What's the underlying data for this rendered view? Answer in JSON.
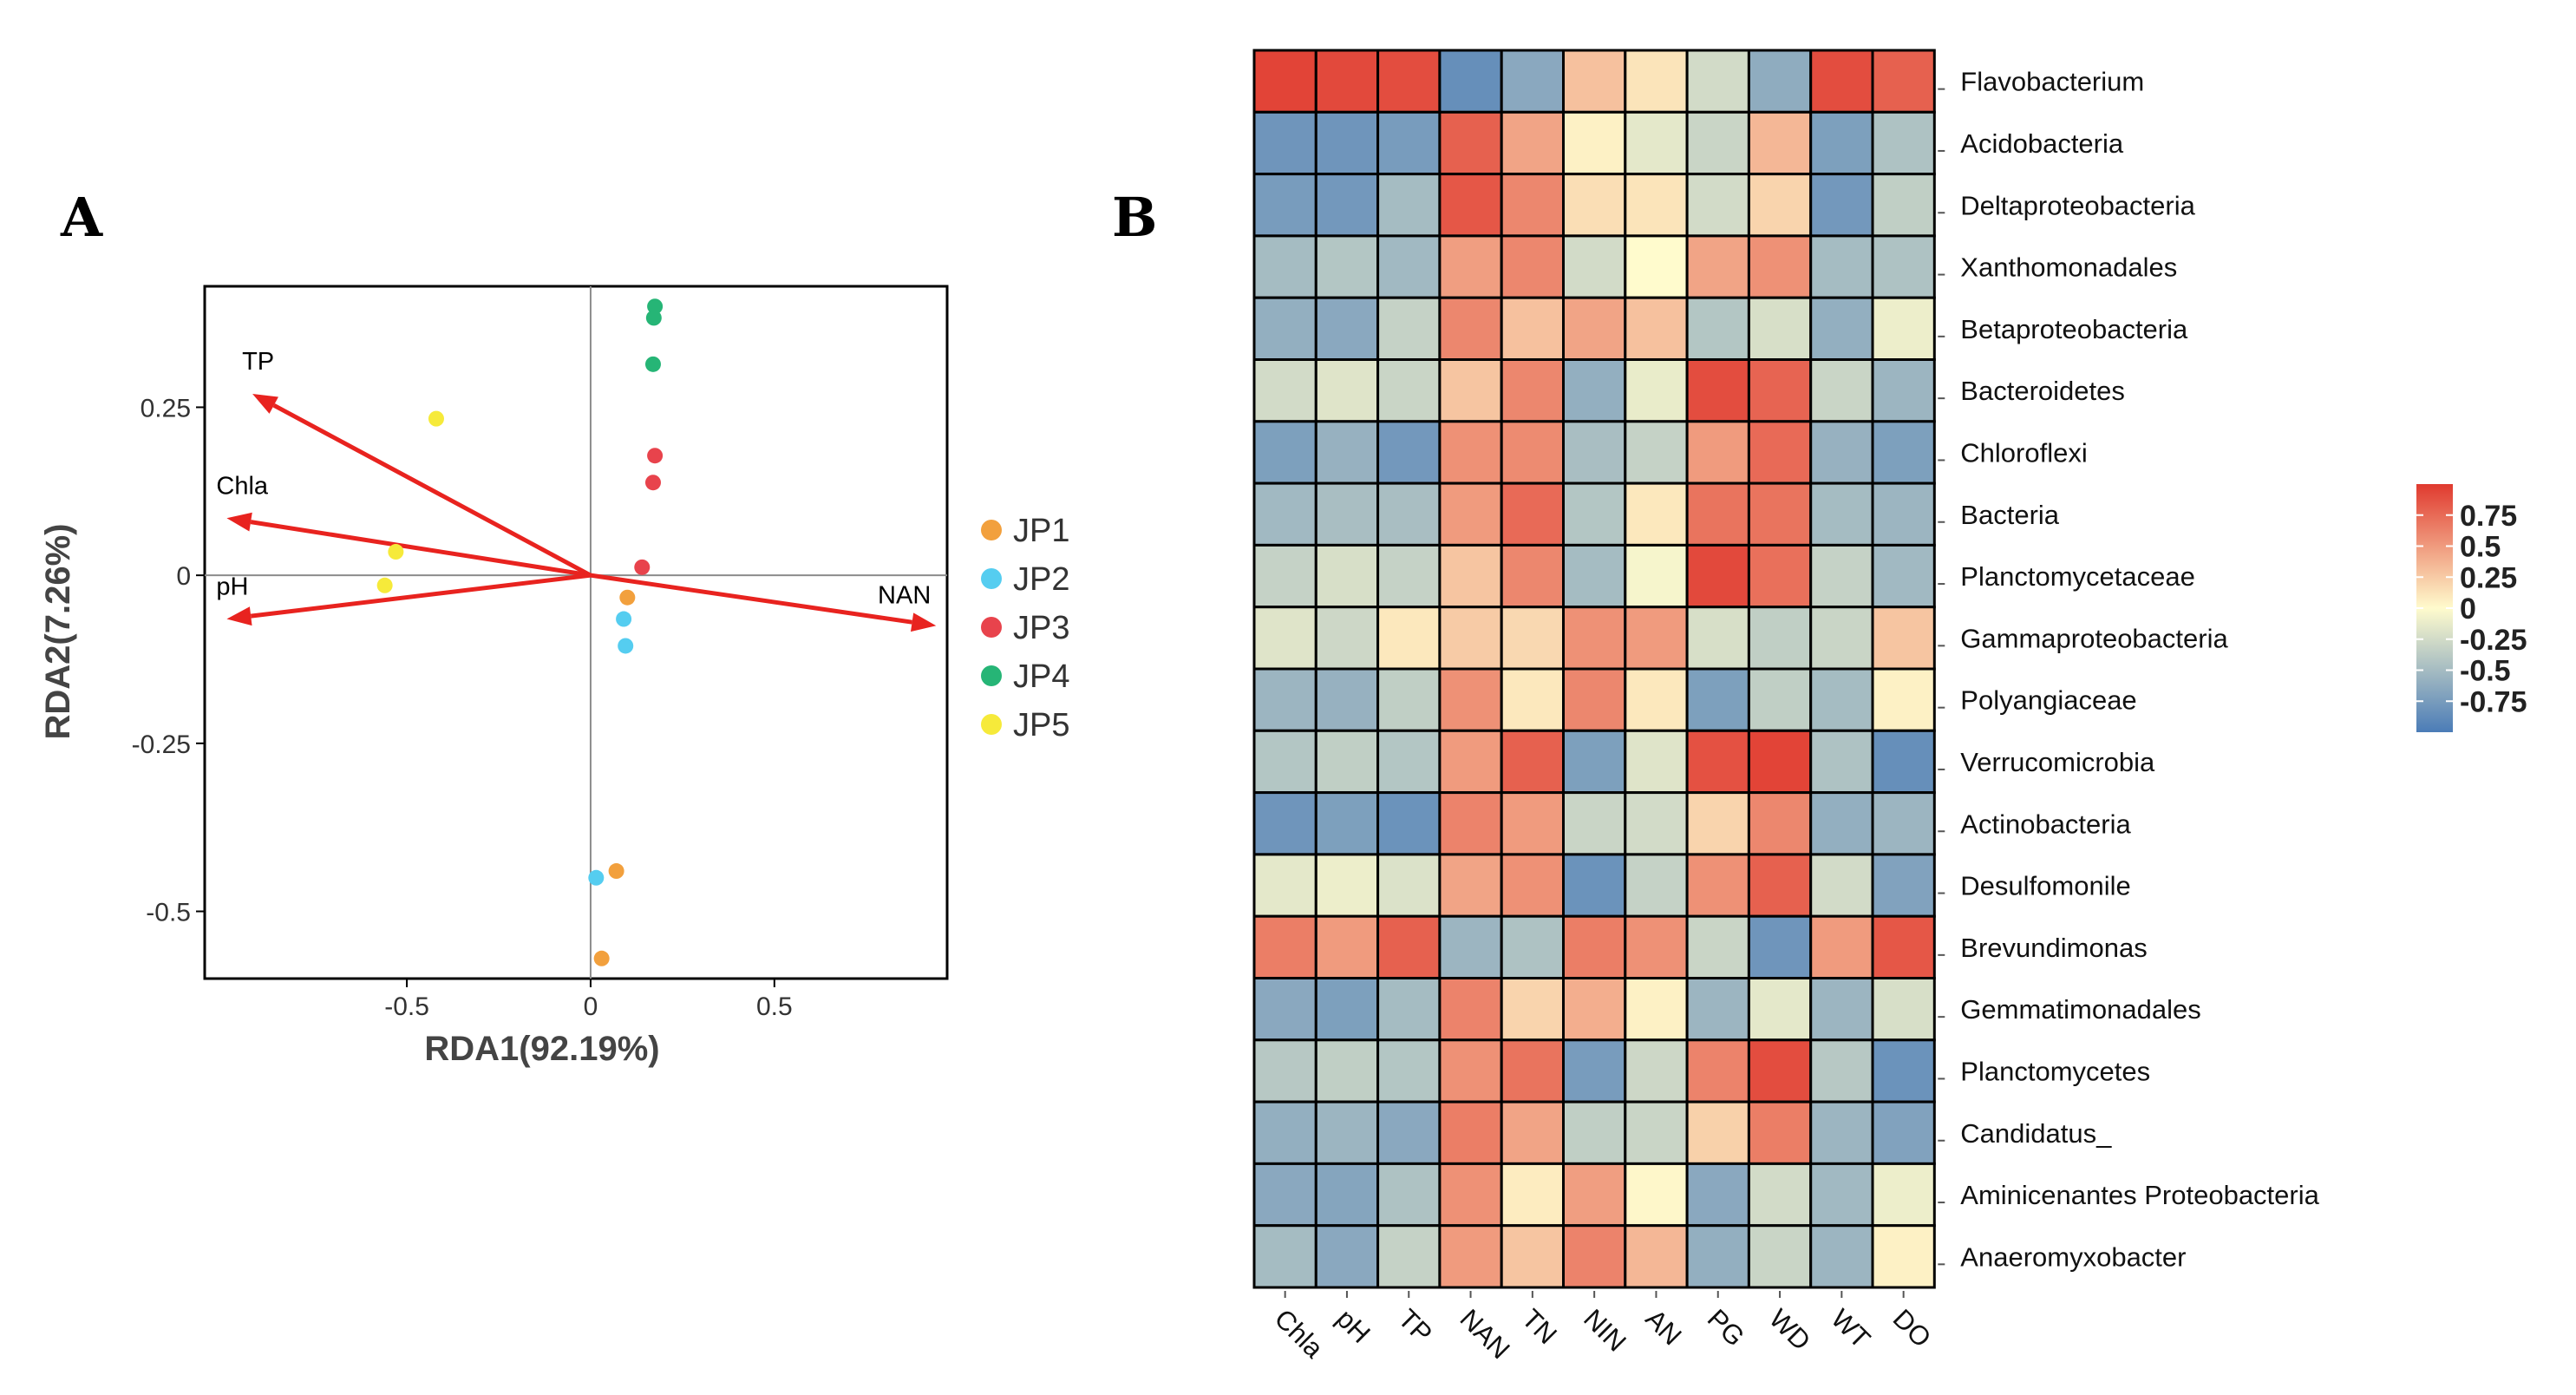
{
  "panels": {
    "a": "A",
    "b": "B"
  },
  "chart_data": [
    {
      "type": "scatter",
      "subtype": "rda_biplot",
      "xlabel": "RDA1(92.19%)",
      "ylabel": "RDA2(7.26%)",
      "xlim": [
        -1.05,
        0.97
      ],
      "ylim": [
        -0.6,
        0.43
      ],
      "xticks": [
        {
          "v": -0.5,
          "label": "-0.5"
        },
        {
          "v": 0,
          "label": "0"
        },
        {
          "v": 0.5,
          "label": "0.5"
        }
      ],
      "yticks": [
        {
          "v": 0.25,
          "label": "0.25"
        },
        {
          "v": 0,
          "label": "0"
        },
        {
          "v": -0.25,
          "label": "-0.25"
        },
        {
          "v": -0.5,
          "label": "-0.5"
        }
      ],
      "arrows": [
        {
          "label": "TP",
          "x": -0.92,
          "y": 0.27
        },
        {
          "label": "Chla",
          "x": -0.99,
          "y": 0.085
        },
        {
          "label": "pH",
          "x": -0.99,
          "y": -0.065
        },
        {
          "label": "NAN",
          "x": 0.94,
          "y": -0.075
        }
      ],
      "arrow_color": "#e8231f",
      "series": [
        {
          "name": "JP1",
          "color": "#f2a03d",
          "points": [
            [
              0.1,
              -0.033
            ],
            [
              0.07,
              -0.44
            ],
            [
              0.03,
              -0.57
            ]
          ]
        },
        {
          "name": "JP2",
          "color": "#55cdf0",
          "points": [
            [
              0.09,
              -0.065
            ],
            [
              0.095,
              -0.105
            ],
            [
              0.015,
              -0.45
            ]
          ]
        },
        {
          "name": "JP3",
          "color": "#e8434c",
          "points": [
            [
              0.175,
              0.178
            ],
            [
              0.17,
              0.138
            ],
            [
              0.14,
              0.012
            ]
          ]
        },
        {
          "name": "JP4",
          "color": "#26b576",
          "points": [
            [
              0.175,
              0.4
            ],
            [
              0.172,
              0.383
            ],
            [
              0.17,
              0.314
            ]
          ]
        },
        {
          "name": "JP5",
          "color": "#f6ea3a",
          "points": [
            [
              -0.42,
              0.233
            ],
            [
              -0.53,
              0.035
            ],
            [
              -0.56,
              -0.015
            ]
          ]
        }
      ]
    },
    {
      "type": "heatmap",
      "columns": [
        "Chla",
        "pH",
        "TP",
        "NAN",
        "TN",
        "NIN",
        "AN",
        "PG",
        "WD",
        "WT",
        "DO"
      ],
      "rows": [
        "Flavobacterium",
        "Acidobacteria",
        "Deltaproteobacteria",
        "Xanthomonadales",
        "Betaproteobacteria",
        "Bacteroidetes",
        "Chloroflexi",
        "Bacteria",
        "Planctomycetaceae",
        "Gammaproteobacteria",
        "Polyangiaceae",
        "Verrucomicrobia",
        "Actinobacteria",
        "Desulfomonile",
        "Brevundimonas",
        "Gemmatimonadales",
        "Planctomycetes",
        "Candidatus_",
        "Aminicenantes Proteobacteria",
        "Anaeromyxobacter"
      ],
      "values": [
        [
          0.95,
          0.92,
          0.9,
          -0.85,
          -0.65,
          0.3,
          0.12,
          -0.25,
          -0.62,
          0.9,
          0.8
        ],
        [
          -0.8,
          -0.8,
          -0.75,
          0.8,
          0.45,
          0.05,
          -0.15,
          -0.3,
          0.35,
          -0.72,
          -0.45
        ],
        [
          -0.75,
          -0.78,
          -0.5,
          0.85,
          0.6,
          0.15,
          0.12,
          -0.25,
          0.2,
          -0.78,
          -0.35
        ],
        [
          -0.5,
          -0.42,
          -0.52,
          0.48,
          0.6,
          -0.25,
          0.0,
          0.45,
          0.55,
          -0.5,
          -0.45
        ],
        [
          -0.6,
          -0.65,
          -0.32,
          0.6,
          0.3,
          0.45,
          0.3,
          -0.42,
          -0.22,
          -0.6,
          -0.1
        ],
        [
          -0.25,
          -0.18,
          -0.3,
          0.28,
          0.6,
          -0.6,
          -0.12,
          0.9,
          0.78,
          -0.3,
          -0.55
        ],
        [
          -0.72,
          -0.58,
          -0.78,
          0.55,
          0.58,
          -0.48,
          -0.32,
          0.5,
          0.75,
          -0.58,
          -0.72
        ],
        [
          -0.52,
          -0.48,
          -0.48,
          0.5,
          0.75,
          -0.42,
          0.1,
          0.7,
          0.7,
          -0.5,
          -0.55
        ],
        [
          -0.32,
          -0.22,
          -0.32,
          0.28,
          0.6,
          -0.5,
          -0.05,
          0.92,
          0.72,
          -0.32,
          -0.52
        ],
        [
          -0.18,
          -0.28,
          0.1,
          0.25,
          0.18,
          0.55,
          0.5,
          -0.22,
          -0.35,
          -0.3,
          0.28
        ],
        [
          -0.55,
          -0.58,
          -0.35,
          0.55,
          0.1,
          0.6,
          0.1,
          -0.72,
          -0.35,
          -0.5,
          0.05
        ],
        [
          -0.42,
          -0.35,
          -0.42,
          0.5,
          0.8,
          -0.72,
          -0.18,
          0.88,
          0.95,
          -0.45,
          -0.85
        ],
        [
          -0.8,
          -0.72,
          -0.82,
          0.62,
          0.5,
          -0.3,
          -0.25,
          0.2,
          0.6,
          -0.6,
          -0.55
        ],
        [
          -0.15,
          -0.1,
          -0.2,
          0.45,
          0.55,
          -0.82,
          -0.32,
          0.55,
          0.8,
          -0.25,
          -0.7
        ],
        [
          0.65,
          0.5,
          0.8,
          -0.55,
          -0.45,
          0.65,
          0.55,
          -0.3,
          -0.8,
          0.5,
          0.85
        ],
        [
          -0.65,
          -0.72,
          -0.5,
          0.62,
          0.2,
          0.4,
          0.05,
          -0.55,
          -0.15,
          -0.55,
          -0.22
        ],
        [
          -0.4,
          -0.35,
          -0.42,
          0.55,
          0.7,
          -0.75,
          -0.28,
          0.62,
          0.9,
          -0.4,
          -0.82
        ],
        [
          -0.6,
          -0.55,
          -0.65,
          0.65,
          0.45,
          -0.35,
          -0.3,
          0.22,
          0.65,
          -0.55,
          -0.7
        ],
        [
          -0.65,
          -0.68,
          -0.45,
          0.55,
          0.08,
          0.48,
          0.02,
          -0.65,
          -0.25,
          -0.52,
          -0.1
        ],
        [
          -0.5,
          -0.65,
          -0.32,
          0.5,
          0.28,
          0.62,
          0.35,
          -0.6,
          -0.3,
          -0.55,
          0.05
        ]
      ],
      "scale": {
        "min": -1,
        "max": 1,
        "low_color": "#4b7cb7",
        "mid_color": "#fffbcd",
        "high_color": "#e03a2f"
      },
      "colorbar_ticks": [
        {
          "v": 0.75,
          "label": "0.75"
        },
        {
          "v": 0.5,
          "label": "0.5"
        },
        {
          "v": 0.25,
          "label": "0.25"
        },
        {
          "v": 0,
          "label": "0"
        },
        {
          "v": -0.25,
          "label": "-0.25"
        },
        {
          "v": -0.5,
          "label": "-0.5"
        },
        {
          "v": -0.75,
          "label": "-0.75"
        }
      ]
    }
  ]
}
